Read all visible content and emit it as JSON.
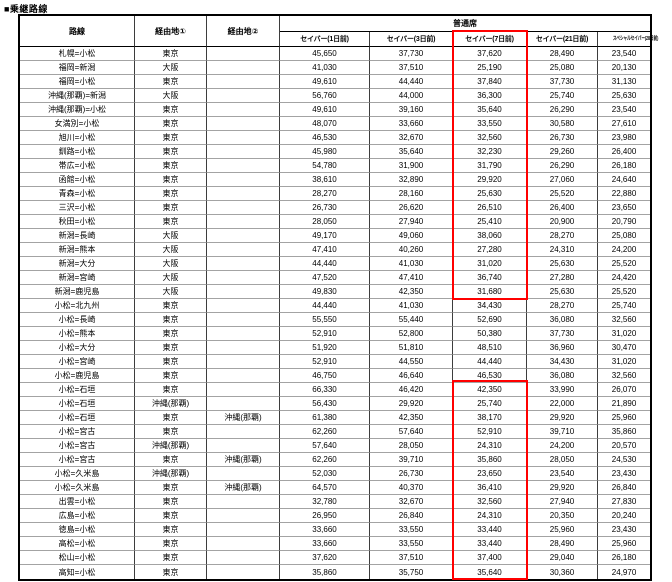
{
  "title": "■乗継路線",
  "table": {
    "col_route": "路線",
    "col_via1": "経由地①",
    "col_via2": "経由地②",
    "seat_class": "普通席",
    "fares": [
      "セイバー(1日前)",
      "セイバー(3日前)",
      "セイバー(7日前)",
      "セイバー(21日前)",
      "スペシャルセイバー(28日前)"
    ],
    "rows": [
      [
        "札幌=小松",
        "東京",
        "",
        "45,650",
        "37,730",
        "37,620",
        "28,490",
        "23,540"
      ],
      [
        "福岡=新潟",
        "大阪",
        "",
        "41,030",
        "37,510",
        "25,190",
        "25,080",
        "20,130"
      ],
      [
        "福岡=小松",
        "東京",
        "",
        "49,610",
        "44,440",
        "37,840",
        "37,730",
        "31,130"
      ],
      [
        "沖縄(那覇)=新潟",
        "大阪",
        "",
        "56,760",
        "44,000",
        "36,300",
        "25,740",
        "25,630"
      ],
      [
        "沖縄(那覇)=小松",
        "東京",
        "",
        "49,610",
        "39,160",
        "35,640",
        "26,290",
        "23,540"
      ],
      [
        "女満別=小松",
        "東京",
        "",
        "48,070",
        "33,660",
        "33,550",
        "30,580",
        "27,610"
      ],
      [
        "旭川=小松",
        "東京",
        "",
        "46,530",
        "32,670",
        "32,560",
        "26,730",
        "23,980"
      ],
      [
        "釧路=小松",
        "東京",
        "",
        "45,980",
        "35,640",
        "32,230",
        "29,260",
        "26,400"
      ],
      [
        "帯広=小松",
        "東京",
        "",
        "54,780",
        "31,900",
        "31,790",
        "26,290",
        "26,180"
      ],
      [
        "函館=小松",
        "東京",
        "",
        "38,610",
        "32,890",
        "29,920",
        "27,060",
        "24,640"
      ],
      [
        "青森=小松",
        "東京",
        "",
        "28,270",
        "28,160",
        "25,630",
        "25,520",
        "22,880"
      ],
      [
        "三沢=小松",
        "東京",
        "",
        "26,730",
        "26,620",
        "26,510",
        "26,400",
        "23,650"
      ],
      [
        "秋田=小松",
        "東京",
        "",
        "28,050",
        "27,940",
        "25,410",
        "20,900",
        "20,790"
      ],
      [
        "新潟=長崎",
        "大阪",
        "",
        "49,170",
        "49,060",
        "38,060",
        "28,270",
        "25,080"
      ],
      [
        "新潟=熊本",
        "大阪",
        "",
        "47,410",
        "40,260",
        "27,280",
        "24,310",
        "24,200"
      ],
      [
        "新潟=大分",
        "大阪",
        "",
        "44,440",
        "41,030",
        "31,020",
        "25,630",
        "25,520"
      ],
      [
        "新潟=宮崎",
        "大阪",
        "",
        "47,520",
        "47,410",
        "36,740",
        "27,280",
        "24,420"
      ],
      [
        "新潟=鹿児島",
        "大阪",
        "",
        "49,830",
        "42,350",
        "31,680",
        "25,630",
        "25,520"
      ],
      [
        "小松=北九州",
        "東京",
        "",
        "44,440",
        "41,030",
        "34,430",
        "28,270",
        "25,740"
      ],
      [
        "小松=長崎",
        "東京",
        "",
        "55,550",
        "55,440",
        "52,690",
        "36,080",
        "32,560"
      ],
      [
        "小松=熊本",
        "東京",
        "",
        "52,910",
        "52,800",
        "50,380",
        "37,730",
        "31,020"
      ],
      [
        "小松=大分",
        "東京",
        "",
        "51,920",
        "51,810",
        "48,510",
        "36,960",
        "30,470"
      ],
      [
        "小松=宮崎",
        "東京",
        "",
        "52,910",
        "44,550",
        "44,440",
        "34,430",
        "31,020"
      ],
      [
        "小松=鹿児島",
        "東京",
        "",
        "46,750",
        "46,640",
        "46,530",
        "36,080",
        "32,560"
      ],
      [
        "小松=石垣",
        "東京",
        "",
        "66,330",
        "46,420",
        "42,350",
        "33,990",
        "26,070"
      ],
      [
        "小松=石垣",
        "沖縄(那覇)",
        "",
        "56,430",
        "29,920",
        "25,740",
        "22,000",
        "21,890"
      ],
      [
        "小松=石垣",
        "東京",
        "沖縄(那覇)",
        "61,380",
        "42,350",
        "38,170",
        "29,920",
        "25,960"
      ],
      [
        "小松=宮古",
        "東京",
        "",
        "62,260",
        "57,640",
        "52,910",
        "39,710",
        "35,860"
      ],
      [
        "小松=宮古",
        "沖縄(那覇)",
        "",
        "57,640",
        "28,050",
        "24,310",
        "24,200",
        "20,570"
      ],
      [
        "小松=宮古",
        "東京",
        "沖縄(那覇)",
        "62,260",
        "39,710",
        "35,860",
        "28,050",
        "24,530"
      ],
      [
        "小松=久米島",
        "沖縄(那覇)",
        "",
        "52,030",
        "26,730",
        "23,650",
        "23,540",
        "23,430"
      ],
      [
        "小松=久米島",
        "東京",
        "沖縄(那覇)",
        "64,570",
        "40,370",
        "36,410",
        "29,920",
        "26,840"
      ],
      [
        "出雲=小松",
        "東京",
        "",
        "32,780",
        "32,670",
        "32,560",
        "27,940",
        "27,830"
      ],
      [
        "広島=小松",
        "東京",
        "",
        "26,950",
        "26,840",
        "24,310",
        "20,350",
        "20,240"
      ],
      [
        "徳島=小松",
        "東京",
        "",
        "33,660",
        "33,550",
        "33,440",
        "25,960",
        "23,430"
      ],
      [
        "高松=小松",
        "東京",
        "",
        "33,660",
        "33,550",
        "33,440",
        "28,490",
        "25,960"
      ],
      [
        "松山=小松",
        "東京",
        "",
        "37,620",
        "37,510",
        "37,400",
        "29,040",
        "26,180"
      ],
      [
        "高知=小松",
        "東京",
        "",
        "35,860",
        "35,750",
        "35,640",
        "30,360",
        "24,970"
      ]
    ]
  },
  "highlight": {
    "column": "セイバー(7日前)",
    "color": "#ff0000"
  }
}
